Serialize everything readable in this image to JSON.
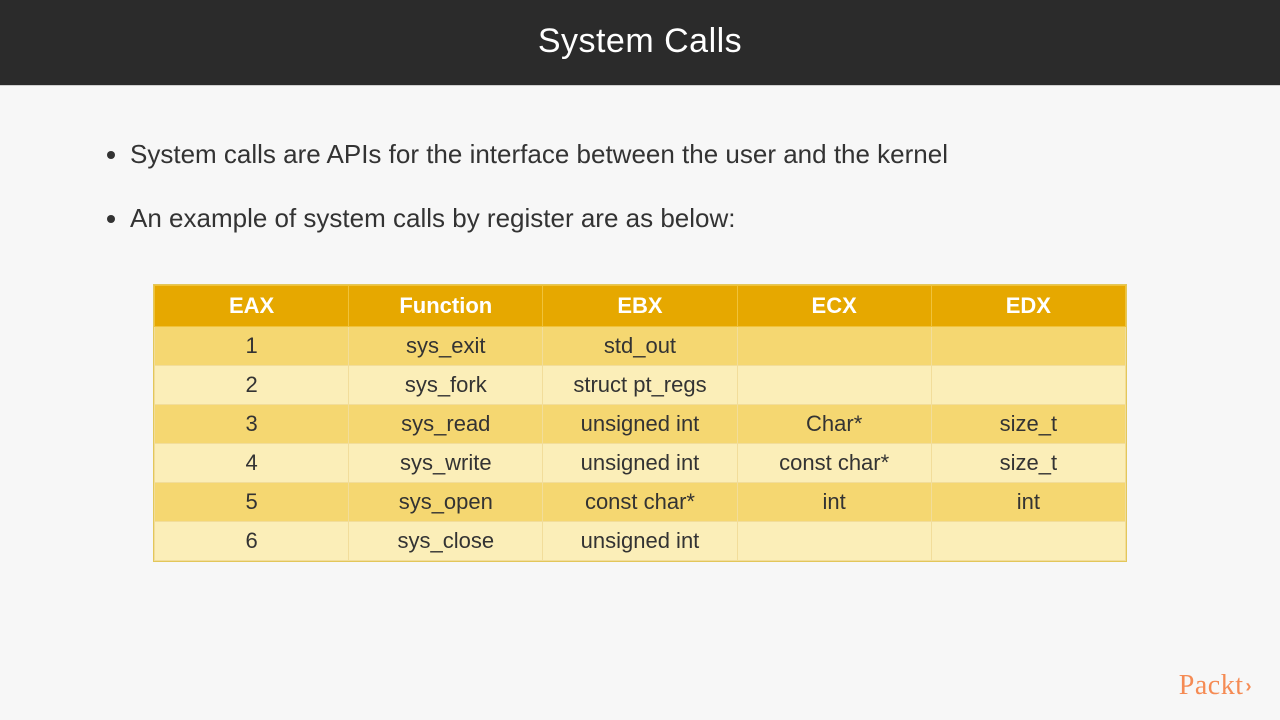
{
  "header": {
    "title": "System Calls"
  },
  "bullets": [
    "System calls are APIs for the interface between the user and the kernel",
    "An example of system calls by register are as below:"
  ],
  "table": {
    "type": "table",
    "columns": [
      "EAX",
      "Function",
      "EBX",
      "ECX",
      "EDX"
    ],
    "rows": [
      [
        "1",
        "sys_exit",
        "std_out",
        "",
        ""
      ],
      [
        "2",
        "sys_fork",
        "struct pt_regs",
        "",
        ""
      ],
      [
        "3",
        "sys_read",
        "unsigned int",
        "Char*",
        "size_t"
      ],
      [
        "4",
        "sys_write",
        "unsigned int",
        "const char*",
        "size_t"
      ],
      [
        "5",
        "sys_open",
        "const char*",
        "int",
        "int"
      ],
      [
        "6",
        "sys_close",
        "unsigned int",
        "",
        ""
      ]
    ],
    "header_bg": "#e6a800",
    "header_fg": "#ffffff",
    "row_odd_bg": "#f5d771",
    "row_even_bg": "#fbeeb8",
    "border_color": "#f2dd9a",
    "font_size": 22
  },
  "logo": {
    "text": "Packt",
    "chevron": "›"
  },
  "colors": {
    "header_bg": "#2b2b2b",
    "page_bg": "#f7f7f7",
    "text": "#333333",
    "accent": "#f58b54"
  }
}
